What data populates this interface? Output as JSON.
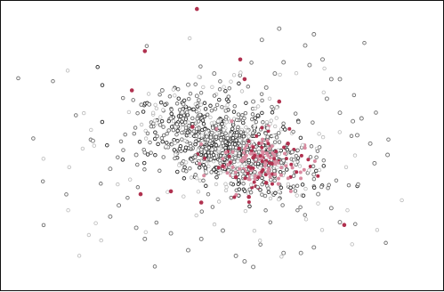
{
  "chart_data": {
    "type": "scatter",
    "title": "",
    "xlabel": "",
    "ylabel": "",
    "xlim": [
      0,
      100
    ],
    "ylim": [
      0,
      100
    ],
    "grid": false,
    "legend": "none",
    "colors": {
      "grey": "#6f6f6f",
      "red": "#b0314f",
      "pink": "#d98aa0"
    },
    "series": [
      {
        "marker": "open-circle",
        "points": [
          [
            20,
            52
          ],
          [
            24,
            42
          ],
          [
            30,
            47
          ],
          [
            33,
            65
          ],
          [
            36,
            70
          ],
          [
            38,
            60
          ],
          [
            42,
            72
          ],
          [
            44,
            68
          ],
          [
            48,
            76
          ],
          [
            57,
            66
          ],
          [
            60,
            71
          ],
          [
            62,
            76
          ],
          [
            64,
            80
          ],
          [
            69,
            86
          ],
          [
            71,
            90
          ],
          [
            59,
            88
          ],
          [
            63,
            92
          ],
          [
            70,
            79
          ],
          [
            73,
            81
          ],
          [
            75,
            74
          ],
          [
            77,
            74
          ],
          [
            74,
            67
          ],
          [
            77,
            62
          ],
          [
            80,
            59
          ],
          [
            81,
            54
          ],
          [
            84,
            51
          ],
          [
            88,
            47
          ],
          [
            85,
            44
          ],
          [
            82,
            60
          ],
          [
            71,
            40
          ],
          [
            64,
            45
          ],
          [
            66,
            48
          ],
          [
            72,
            33
          ],
          [
            75,
            28
          ],
          [
            77,
            23
          ],
          [
            30,
            21
          ],
          [
            32,
            17
          ],
          [
            38,
            19
          ],
          [
            42,
            13
          ],
          [
            45,
            17
          ],
          [
            50,
            20
          ],
          [
            55,
            9
          ],
          [
            57,
            7
          ],
          [
            53,
            11
          ],
          [
            68,
            12
          ],
          [
            71,
            14
          ],
          [
            64,
            12
          ],
          [
            26,
            29
          ],
          [
            24,
            25
          ]
        ]
      },
      {
        "marker": "filled-circle",
        "color": "#b0314f",
        "points": [
          [
            44,
            99
          ],
          [
            32,
            84
          ],
          [
            29,
            70
          ],
          [
            54,
            81
          ],
          [
            63,
            66
          ],
          [
            55,
            74
          ],
          [
            43,
            57
          ],
          [
            78,
            22
          ],
          [
            38,
            34
          ],
          [
            31,
            33
          ],
          [
            65,
            51
          ],
          [
            57,
            46
          ],
          [
            50,
            43
          ],
          [
            53,
            39
          ],
          [
            60,
            37
          ],
          [
            56,
            32
          ],
          [
            45,
            30
          ]
        ]
      }
    ]
  }
}
